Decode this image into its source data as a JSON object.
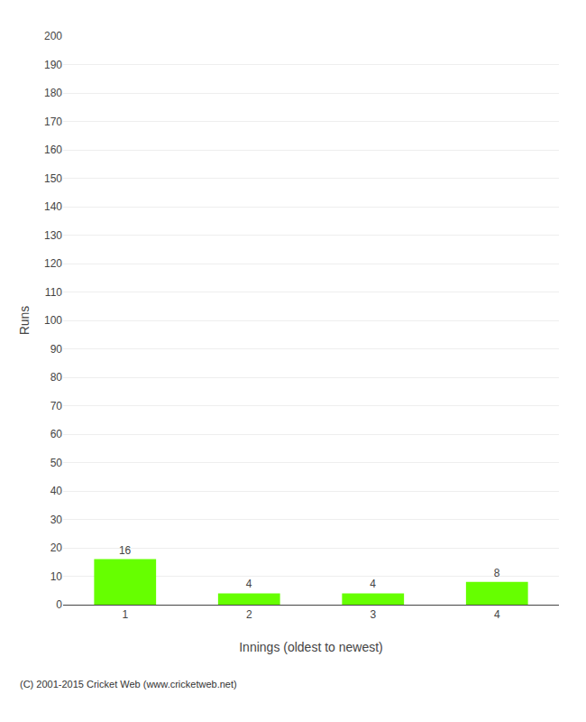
{
  "chart_data": {
    "type": "bar",
    "categories": [
      "1",
      "2",
      "3",
      "4"
    ],
    "values": [
      16,
      4,
      4,
      8
    ],
    "color": "#66ff00",
    "xlabel": "Innings (oldest to newest)",
    "ylabel": "Runs",
    "ylim": [
      0,
      200
    ],
    "yticks": [
      0,
      10,
      20,
      30,
      40,
      50,
      60,
      70,
      80,
      90,
      100,
      110,
      120,
      130,
      140,
      150,
      160,
      170,
      180,
      190,
      200
    ],
    "grid": true,
    "data_labels": true,
    "annotations": [
      "(C) 2001-2015 Cricket Web (www.cricketweb.net)"
    ]
  }
}
